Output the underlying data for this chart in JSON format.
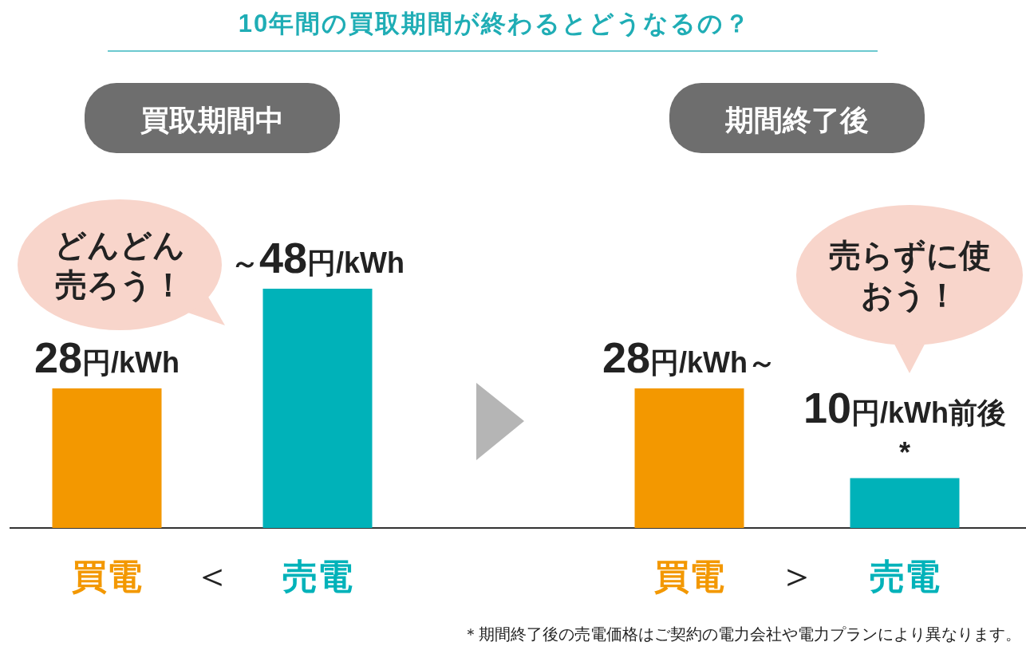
{
  "chart_data": [
    {
      "type": "bar",
      "title": "10年間の買取期間が終わるとどうなるの？",
      "subtitle": "買取期間中",
      "categories": [
        "買電",
        "売電"
      ],
      "values": [
        28,
        48
      ],
      "colors": [
        "#f39800",
        "#00b2b9"
      ],
      "value_labels": [
        "28円/kWh",
        "～48円/kWh"
      ],
      "annotations": [
        "どんどん売ろう！",
        "＜"
      ]
    },
    {
      "type": "bar",
      "subtitle": "期間終了後",
      "categories": [
        "買電",
        "売電"
      ],
      "values": [
        28,
        10
      ],
      "colors": [
        "#f39800",
        "#00b2b9"
      ],
      "value_labels": [
        "28円/kWh～",
        "10円/kWh前後*"
      ],
      "annotations": [
        "売らずに使おう！",
        "＞",
        "＊期間終了後の売電価格はご契約の電力会社や電力プランにより異なります。"
      ]
    }
  ]
}
